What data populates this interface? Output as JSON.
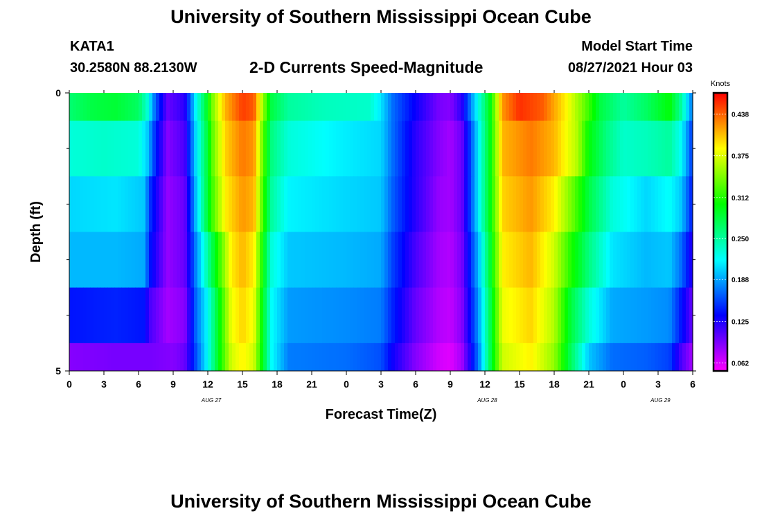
{
  "header": {
    "title": "University of Southern Mississippi Ocean Cube",
    "station": "KATA1",
    "coords": "30.2580N  88.2130W",
    "chart_title": "2-D Currents Speed-Magnitude",
    "start_label": "Model Start Time",
    "start_value": "08/27/2021 Hour 03"
  },
  "footer": {
    "title": "University of Southern Mississippi Ocean Cube"
  },
  "chart_data": {
    "type": "heatmap",
    "title": "2-D Currents Speed-Magnitude",
    "xlabel": "Forecast Time(Z)",
    "ylabel": "Depth (ft)",
    "xlim": [
      0,
      54
    ],
    "ylim": [
      5,
      0
    ],
    "x_ticks": [
      0,
      3,
      6,
      9,
      12,
      15,
      18,
      21,
      24,
      27,
      30,
      33,
      36,
      39,
      42,
      45,
      48,
      51,
      54
    ],
    "x_tick_labels": [
      "0",
      "3",
      "6",
      "9",
      "12",
      "15",
      "18",
      "21",
      "0",
      "3",
      "6",
      "9",
      "12",
      "15",
      "18",
      "21",
      "0",
      "3",
      "6"
    ],
    "date_labels": [
      {
        "text": "AUG 27",
        "x": 12.3
      },
      {
        "text": "AUG 28",
        "x": 36.2
      },
      {
        "text": "AUG 29",
        "x": 51.2
      }
    ],
    "y_ticks": [
      0,
      5
    ],
    "y_tick_labels": [
      "0",
      "5"
    ],
    "y_minor_ticks": [
      1,
      2,
      3,
      4
    ],
    "colorbar": {
      "label": "Knots",
      "min": 0.05,
      "max": 0.47,
      "ticks": [
        0.062,
        0.125,
        0.188,
        0.25,
        0.312,
        0.375,
        0.438
      ],
      "tick_labels": [
        "0.062",
        "0.125",
        "0.188",
        "0.250",
        "0.312",
        "0.375",
        "0.438"
      ]
    },
    "depth_layers": [
      {
        "depth_top": 0,
        "depth_bottom": 0.5,
        "knots": [
          [
            0,
            0.265
          ],
          [
            2,
            0.28
          ],
          [
            4,
            0.285
          ],
          [
            6,
            0.27
          ],
          [
            6.8,
            0.23
          ],
          [
            7.4,
            0.17
          ],
          [
            8.5,
            0.1
          ],
          [
            10,
            0.12
          ],
          [
            10.5,
            0.17
          ],
          [
            11,
            0.22
          ],
          [
            11.8,
            0.28
          ],
          [
            12.5,
            0.35
          ],
          [
            13.5,
            0.41
          ],
          [
            15,
            0.45
          ],
          [
            16,
            0.44
          ],
          [
            16.8,
            0.35
          ],
          [
            17.5,
            0.28
          ],
          [
            19,
            0.25
          ],
          [
            22,
            0.24
          ],
          [
            26,
            0.235
          ],
          [
            27,
            0.21
          ],
          [
            28,
            0.17
          ],
          [
            30,
            0.13
          ],
          [
            32,
            0.095
          ],
          [
            33,
            0.09
          ],
          [
            34,
            0.12
          ],
          [
            34.8,
            0.18
          ],
          [
            35.5,
            0.23
          ],
          [
            36.5,
            0.3
          ],
          [
            37.5,
            0.42
          ],
          [
            39,
            0.455
          ],
          [
            41,
            0.44
          ],
          [
            43,
            0.39
          ],
          [
            44.5,
            0.34
          ],
          [
            46,
            0.28
          ],
          [
            48,
            0.25
          ],
          [
            50,
            0.27
          ],
          [
            52,
            0.3
          ],
          [
            53,
            0.25
          ],
          [
            54,
            0.17
          ]
        ]
      },
      {
        "depth_top": 0.5,
        "depth_bottom": 1.5,
        "knots": [
          [
            0,
            0.23
          ],
          [
            3,
            0.235
          ],
          [
            6,
            0.23
          ],
          [
            6.8,
            0.2
          ],
          [
            7.4,
            0.15
          ],
          [
            8.5,
            0.09
          ],
          [
            10,
            0.11
          ],
          [
            10.5,
            0.16
          ],
          [
            11,
            0.21
          ],
          [
            11.8,
            0.27
          ],
          [
            12.5,
            0.34
          ],
          [
            13.5,
            0.4
          ],
          [
            15,
            0.43
          ],
          [
            16,
            0.42
          ],
          [
            16.8,
            0.33
          ],
          [
            17.5,
            0.26
          ],
          [
            19,
            0.23
          ],
          [
            23,
            0.215
          ],
          [
            27,
            0.205
          ],
          [
            28,
            0.17
          ],
          [
            30,
            0.12
          ],
          [
            32,
            0.09
          ],
          [
            33,
            0.08
          ],
          [
            34,
            0.1
          ],
          [
            34.8,
            0.16
          ],
          [
            35.5,
            0.22
          ],
          [
            36.5,
            0.3
          ],
          [
            37.5,
            0.41
          ],
          [
            40,
            0.43
          ],
          [
            42,
            0.41
          ],
          [
            44,
            0.36
          ],
          [
            45,
            0.3
          ],
          [
            46.5,
            0.26
          ],
          [
            48,
            0.235
          ],
          [
            50,
            0.24
          ],
          [
            52,
            0.25
          ],
          [
            53,
            0.22
          ],
          [
            54,
            0.15
          ]
        ]
      },
      {
        "depth_top": 1.5,
        "depth_bottom": 2.5,
        "knots": [
          [
            0,
            0.205
          ],
          [
            4,
            0.21
          ],
          [
            6.5,
            0.2
          ],
          [
            7,
            0.15
          ],
          [
            8.5,
            0.085
          ],
          [
            10,
            0.1
          ],
          [
            10.5,
            0.15
          ],
          [
            11,
            0.2
          ],
          [
            11.8,
            0.27
          ],
          [
            12.5,
            0.33
          ],
          [
            13.5,
            0.39
          ],
          [
            15,
            0.42
          ],
          [
            16,
            0.41
          ],
          [
            16.8,
            0.32
          ],
          [
            17.5,
            0.25
          ],
          [
            19,
            0.215
          ],
          [
            24,
            0.205
          ],
          [
            27,
            0.2
          ],
          [
            28,
            0.165
          ],
          [
            30,
            0.12
          ],
          [
            32,
            0.085
          ],
          [
            33,
            0.08
          ],
          [
            34,
            0.1
          ],
          [
            34.8,
            0.16
          ],
          [
            35.5,
            0.22
          ],
          [
            36.5,
            0.3
          ],
          [
            37.5,
            0.4
          ],
          [
            40,
            0.42
          ],
          [
            42,
            0.39
          ],
          [
            43.5,
            0.34
          ],
          [
            45,
            0.28
          ],
          [
            47,
            0.23
          ],
          [
            50,
            0.205
          ],
          [
            52,
            0.22
          ],
          [
            53,
            0.2
          ],
          [
            54,
            0.14
          ]
        ]
      },
      {
        "depth_top": 2.5,
        "depth_bottom": 3.5,
        "knots": [
          [
            0,
            0.195
          ],
          [
            4,
            0.195
          ],
          [
            6.5,
            0.19
          ],
          [
            7,
            0.14
          ],
          [
            8.5,
            0.085
          ],
          [
            10,
            0.1
          ],
          [
            10.5,
            0.14
          ],
          [
            11,
            0.18
          ],
          [
            12,
            0.25
          ],
          [
            13,
            0.32
          ],
          [
            14,
            0.39
          ],
          [
            15,
            0.41
          ],
          [
            16,
            0.39
          ],
          [
            16.8,
            0.3
          ],
          [
            17.5,
            0.23
          ],
          [
            19,
            0.2
          ],
          [
            24,
            0.195
          ],
          [
            27,
            0.19
          ],
          [
            28,
            0.155
          ],
          [
            30,
            0.11
          ],
          [
            32,
            0.08
          ],
          [
            33,
            0.075
          ],
          [
            34,
            0.095
          ],
          [
            34.8,
            0.15
          ],
          [
            35.5,
            0.2
          ],
          [
            36.5,
            0.29
          ],
          [
            37.5,
            0.39
          ],
          [
            40,
            0.41
          ],
          [
            42,
            0.37
          ],
          [
            43.5,
            0.31
          ],
          [
            45,
            0.26
          ],
          [
            47,
            0.21
          ],
          [
            50,
            0.195
          ],
          [
            52,
            0.2
          ],
          [
            53,
            0.17
          ],
          [
            54,
            0.12
          ]
        ]
      },
      {
        "depth_top": 3.5,
        "depth_bottom": 4.5,
        "knots": [
          [
            0,
            0.14
          ],
          [
            4,
            0.145
          ],
          [
            6.5,
            0.14
          ],
          [
            7,
            0.11
          ],
          [
            8.5,
            0.08
          ],
          [
            10,
            0.09
          ],
          [
            10.5,
            0.13
          ],
          [
            11,
            0.17
          ],
          [
            12,
            0.22
          ],
          [
            13,
            0.3
          ],
          [
            14,
            0.38
          ],
          [
            15,
            0.4
          ],
          [
            16,
            0.38
          ],
          [
            16.8,
            0.29
          ],
          [
            17.5,
            0.22
          ],
          [
            19,
            0.185
          ],
          [
            24,
            0.18
          ],
          [
            27,
            0.175
          ],
          [
            28,
            0.145
          ],
          [
            30,
            0.1
          ],
          [
            32,
            0.075
          ],
          [
            33,
            0.07
          ],
          [
            34,
            0.09
          ],
          [
            34.8,
            0.14
          ],
          [
            35.5,
            0.19
          ],
          [
            36.5,
            0.28
          ],
          [
            37.5,
            0.38
          ],
          [
            40,
            0.4
          ],
          [
            42,
            0.36
          ],
          [
            43.5,
            0.28
          ],
          [
            45,
            0.23
          ],
          [
            47,
            0.19
          ],
          [
            50,
            0.185
          ],
          [
            52,
            0.18
          ],
          [
            53,
            0.14
          ],
          [
            54,
            0.1
          ]
        ]
      },
      {
        "depth_top": 4.5,
        "depth_bottom": 5,
        "knots": [
          [
            0,
            0.09
          ],
          [
            4,
            0.095
          ],
          [
            7,
            0.095
          ],
          [
            9,
            0.09
          ],
          [
            10,
            0.1
          ],
          [
            10.5,
            0.13
          ],
          [
            11,
            0.16
          ],
          [
            12,
            0.22
          ],
          [
            13,
            0.3
          ],
          [
            14,
            0.37
          ],
          [
            15,
            0.39
          ],
          [
            16,
            0.37
          ],
          [
            16.8,
            0.29
          ],
          [
            17.5,
            0.22
          ],
          [
            19,
            0.175
          ],
          [
            24,
            0.17
          ],
          [
            27,
            0.16
          ],
          [
            28,
            0.13
          ],
          [
            30,
            0.09
          ],
          [
            32,
            0.065
          ],
          [
            33,
            0.06
          ],
          [
            34,
            0.08
          ],
          [
            34.8,
            0.13
          ],
          [
            35.5,
            0.18
          ],
          [
            36.5,
            0.28
          ],
          [
            37.5,
            0.37
          ],
          [
            40,
            0.39
          ],
          [
            42,
            0.35
          ],
          [
            43.5,
            0.27
          ],
          [
            45,
            0.2
          ],
          [
            47,
            0.17
          ],
          [
            50,
            0.165
          ],
          [
            52,
            0.155
          ],
          [
            53,
            0.11
          ],
          [
            54,
            0.08
          ]
        ]
      }
    ]
  }
}
